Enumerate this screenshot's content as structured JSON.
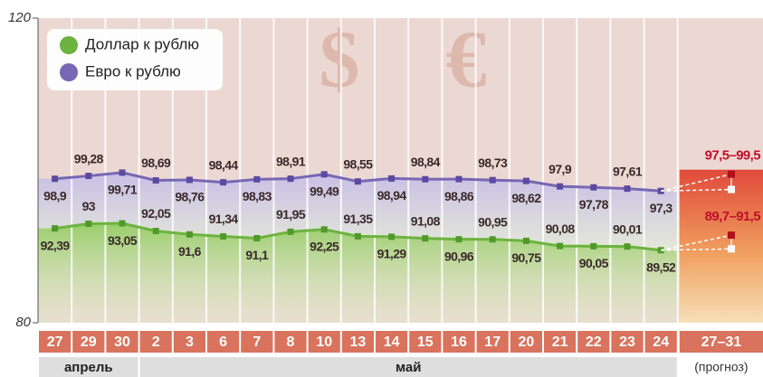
{
  "chart_data": {
    "type": "line",
    "categories": [
      "27",
      "29",
      "30",
      "2",
      "3",
      "6",
      "7",
      "8",
      "10",
      "13",
      "14",
      "15",
      "16",
      "17",
      "20",
      "21",
      "22",
      "23",
      "24"
    ],
    "months": [
      {
        "label": "апрель",
        "start": 0,
        "end": 2
      },
      {
        "label": "май",
        "start": 3,
        "end": 18
      }
    ],
    "forecast": {
      "category": "27–31",
      "note": "(прогноз)"
    },
    "series": [
      {
        "name": "Доллар к рублю",
        "color": "#6cb33f",
        "values": [
          92.39,
          93,
          93.05,
          92.05,
          91.6,
          91.34,
          91.1,
          91.95,
          92.25,
          91.35,
          91.29,
          91.08,
          90.96,
          90.95,
          90.75,
          90.08,
          90.05,
          90.01,
          89.52
        ],
        "value_labels": [
          "92,39",
          "93",
          "93,05",
          "92,05",
          "91,6",
          "91,34",
          "91,1",
          "91,95",
          "92,25",
          "91,35",
          "91,29",
          "91,08",
          "90,96",
          "90,95",
          "90,75",
          "90,08",
          "90,05",
          "90,01",
          "89,52"
        ],
        "forecast": {
          "values": [
            89.7,
            91.5
          ],
          "label": "89,7–91,5"
        }
      },
      {
        "name": "Евро к рублю",
        "color": "#7767b5",
        "values": [
          98.9,
          99.28,
          99.71,
          98.69,
          98.76,
          98.44,
          98.83,
          98.91,
          99.49,
          98.55,
          98.94,
          98.84,
          98.86,
          98.73,
          98.62,
          97.9,
          97.78,
          97.61,
          97.3
        ],
        "value_labels": [
          "98,9",
          "99,28",
          "99,71",
          "98,69",
          "98,76",
          "98,44",
          "98,83",
          "98,91",
          "99,49",
          "98,55",
          "98,94",
          "98,84",
          "98,86",
          "98,73",
          "98,62",
          "97,9",
          "97,78",
          "97,61",
          "97,3"
        ],
        "forecast": {
          "values": [
            97.5,
            99.5
          ],
          "label": "97,5–99,5"
        }
      }
    ],
    "ylim": [
      80,
      120
    ],
    "yticks": [
      80,
      120
    ]
  }
}
